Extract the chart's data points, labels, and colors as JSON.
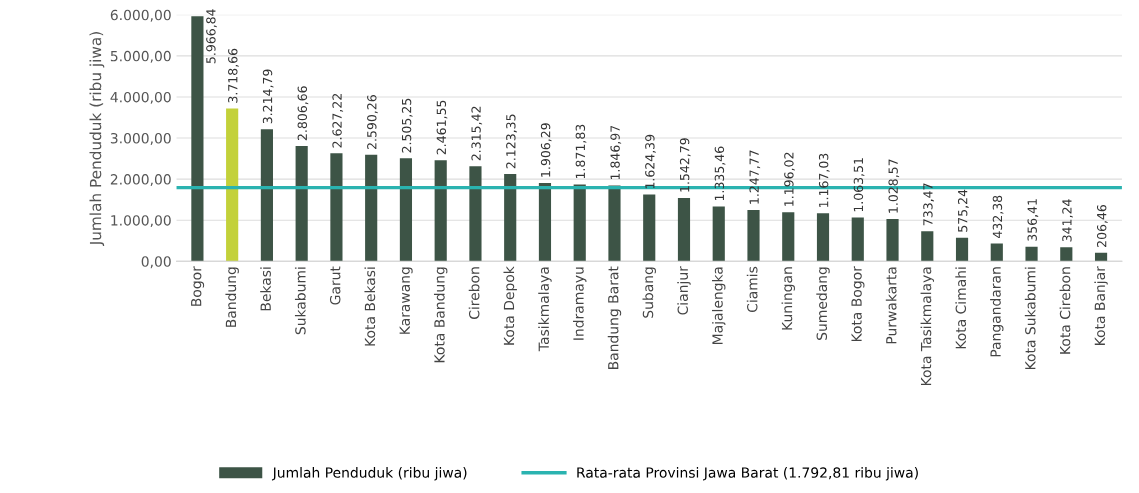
{
  "chart_data": {
    "type": "bar",
    "ylabel": "Jumlah Penduduk (ribu jiwa)",
    "categories": [
      "Bogor",
      "Bandung",
      "Bekasi",
      "Sukabumi",
      "Garut",
      "Kota Bekasi",
      "Karawang",
      "Kota Bandung",
      "Cirebon",
      "Kota Depok",
      "Tasikmalaya",
      "Indramayu",
      "Bandung Barat",
      "Subang",
      "Cianjur",
      "Majalengka",
      "Ciamis",
      "Kuningan",
      "Sumedang",
      "Kota Bogor",
      "Purwakarta",
      "Kota Tasikmalaya",
      "Kota Cimahi",
      "Pangandaran",
      "Kota Sukabumi",
      "Kota Cirebon",
      "Kota Banjar"
    ],
    "series": [
      {
        "name": "Jumlah Penduduk (ribu jiwa)",
        "color": "#3d5446",
        "colors": [
          "#3d5446",
          "#c3d13a",
          "#3d5446",
          "#3d5446",
          "#3d5446",
          "#3d5446",
          "#3d5446",
          "#3d5446",
          "#3d5446",
          "#3d5446",
          "#3d5446",
          "#3d5446",
          "#3d5446",
          "#3d5446",
          "#3d5446",
          "#3d5446",
          "#3d5446",
          "#3d5446",
          "#3d5446",
          "#3d5446",
          "#3d5446",
          "#3d5446",
          "#3d5446",
          "#3d5446",
          "#3d5446",
          "#3d5446",
          "#3d5446"
        ],
        "values": [
          5966.84,
          3718.66,
          3214.79,
          2806.66,
          2627.22,
          2590.26,
          2505.25,
          2461.55,
          2315.42,
          2123.35,
          1906.29,
          1871.83,
          1846.97,
          1624.39,
          1542.79,
          1335.46,
          1247.77,
          1196.02,
          1167.03,
          1063.51,
          1028.57,
          733.47,
          575.24,
          432.38,
          356.41,
          341.24,
          206.46
        ],
        "value_labels": [
          "5.966,84",
          "3.718,66",
          "3.214,79",
          "2.806,66",
          "2.627,22",
          "2.590,26",
          "2.505,25",
          "2.461,55",
          "2.315,42",
          "2.123,35",
          "1.906,29",
          "1.871,83",
          "1.846,97",
          "1.624,39",
          "1.542,79",
          "1.335,46",
          "1.247,77",
          "1.196,02",
          "1.167,03",
          "1.063,51",
          "1.028,57",
          "733,47",
          "575,24",
          "432,38",
          "356,41",
          "341,24",
          "206,46"
        ]
      }
    ],
    "ref_lines": [
      {
        "axis": "y",
        "value": 1792.81,
        "label": "Rata-rata Provinsi Jawa Barat (1.792,81 ribu jiwa)",
        "color": "#2ab3b0"
      }
    ],
    "ylim": [
      0,
      6000
    ],
    "yticks": [
      {
        "value": 0,
        "label": "0,00"
      },
      {
        "value": 1000,
        "label": "1.000,00"
      },
      {
        "value": 2000,
        "label": "2.000,00"
      },
      {
        "value": 3000,
        "label": "3.000,00"
      },
      {
        "value": 4000,
        "label": "4.000,00"
      },
      {
        "value": 5000,
        "label": "5.000,00"
      },
      {
        "value": 6000,
        "label": "6.000,00"
      }
    ],
    "grid": "y",
    "legend": "bottom"
  }
}
